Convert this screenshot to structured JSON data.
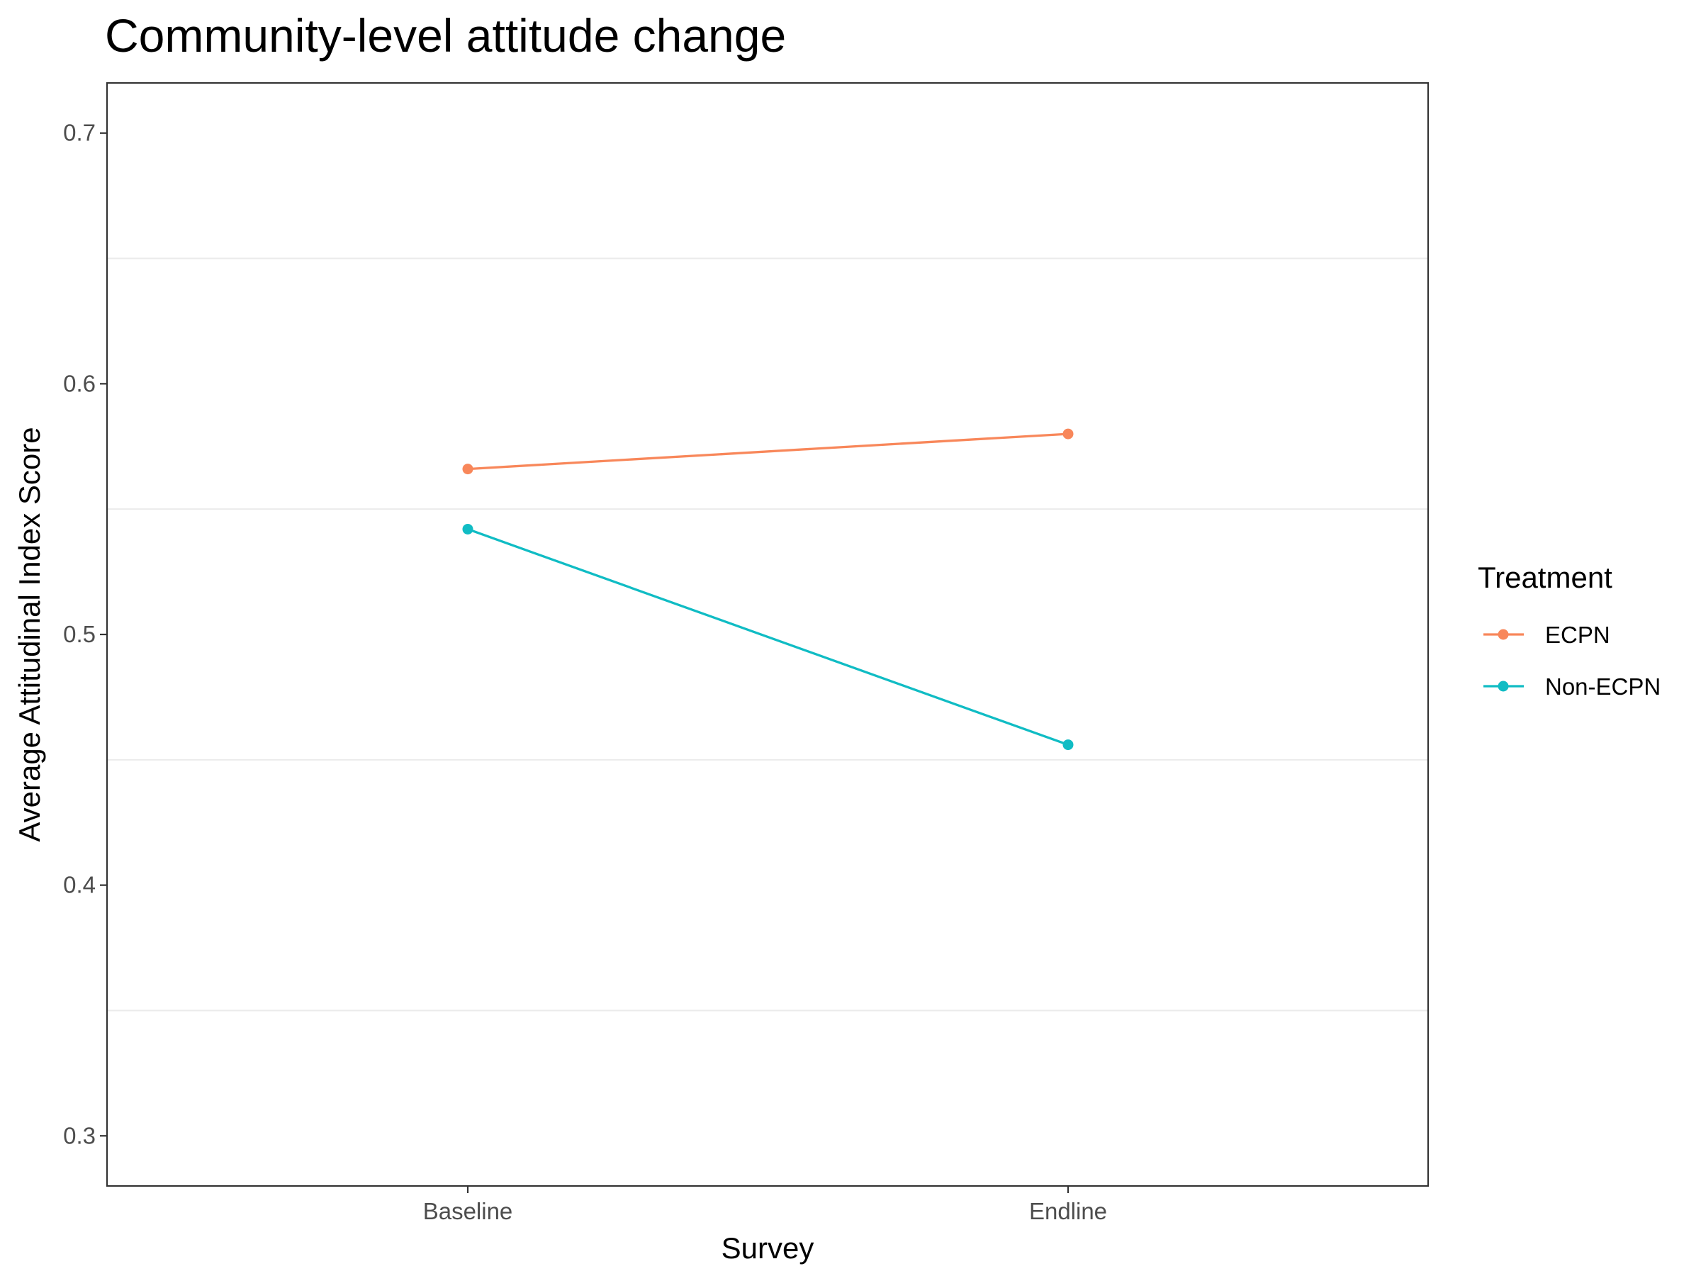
{
  "chart_data": {
    "type": "line",
    "title": "Community-level attitude change",
    "xlabel": "Survey",
    "ylabel": "Average Attitudinal Index Score",
    "categories": [
      "Baseline",
      "Endline"
    ],
    "series": [
      {
        "name": "ECPN",
        "color": "#F8875A",
        "values": [
          0.566,
          0.58
        ]
      },
      {
        "name": "Non-ECPN",
        "color": "#10BCC4",
        "values": [
          0.542,
          0.456
        ]
      }
    ],
    "ylim": [
      0.28,
      0.72
    ],
    "yticks": [
      0.3,
      0.4,
      0.5,
      0.6,
      0.7
    ],
    "ytick_labels": [
      "0.3",
      "0.4",
      "0.5",
      "0.6",
      "0.7"
    ],
    "y_minor_gridlines": [
      0.35,
      0.45,
      0.55,
      0.65
    ],
    "grid": "horizontal",
    "legend": {
      "title": "Treatment",
      "position": "right"
    }
  }
}
